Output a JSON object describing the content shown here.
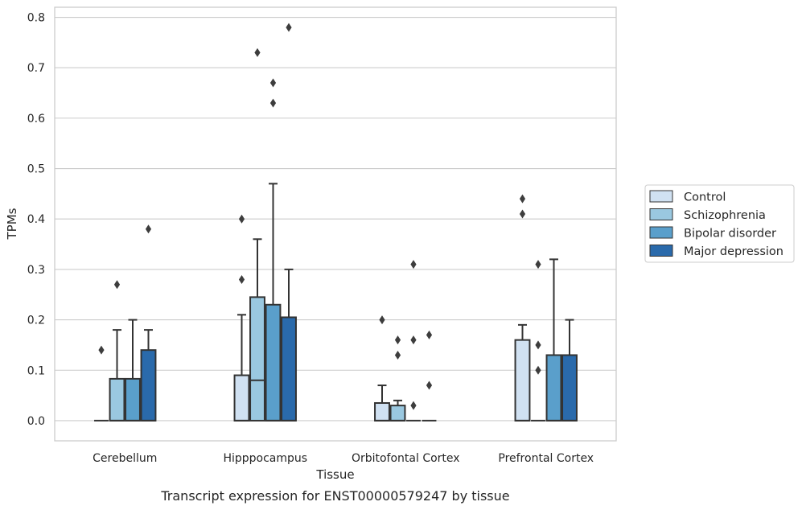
{
  "caption": "Transcript expression for ENST00000579247 by tissue",
  "colors": {
    "Control": "#d0e1f2",
    "Schizophrenia": "#9ac8e0",
    "Bipolar disorder": "#5a9fcb",
    "Major depression": "#2a6aab",
    "edge": "#333333",
    "grid": "#cccccc",
    "outlier": "#3d3d3d"
  },
  "chart_data": {
    "type": "box",
    "title": "",
    "xlabel": "Tissue",
    "ylabel": "TPMs",
    "ylim": [
      -0.04,
      0.82
    ],
    "yticks": [
      "0.0",
      "0.1",
      "0.2",
      "0.3",
      "0.4",
      "0.5",
      "0.6",
      "0.7",
      "0.8"
    ],
    "grid": "horizontal",
    "legend_position": "right",
    "categories": [
      "Cerebellum",
      "Hipppocampus",
      "Orbitofontal Cortex",
      "Prefrontal Cortex"
    ],
    "series": [
      {
        "name": "Control",
        "boxes": [
          {
            "q1": 0,
            "median": 0,
            "q3": 0,
            "whisker_low": 0,
            "whisker_high": 0,
            "outliers": [
              0.14
            ]
          },
          {
            "q1": 0,
            "median": 0,
            "q3": 0.09,
            "whisker_low": 0,
            "whisker_high": 0.21,
            "outliers": [
              0.28,
              0.4
            ]
          },
          {
            "q1": 0,
            "median": 0,
            "q3": 0.035,
            "whisker_low": 0,
            "whisker_high": 0.07,
            "outliers": [
              0.2
            ]
          },
          {
            "q1": 0,
            "median": 0,
            "q3": 0.16,
            "whisker_low": 0,
            "whisker_high": 0.19,
            "outliers": [
              0.41,
              0.44
            ]
          }
        ]
      },
      {
        "name": "Schizophrenia",
        "boxes": [
          {
            "q1": 0,
            "median": 0,
            "q3": 0.083,
            "whisker_low": 0,
            "whisker_high": 0.18,
            "outliers": [
              0.27
            ]
          },
          {
            "q1": 0,
            "median": 0.08,
            "q3": 0.245,
            "whisker_low": 0,
            "whisker_high": 0.36,
            "outliers": [
              0.73
            ]
          },
          {
            "q1": 0,
            "median": 0,
            "q3": 0.03,
            "whisker_low": 0,
            "whisker_high": 0.04,
            "outliers": [
              0.13,
              0.16
            ]
          },
          {
            "q1": 0,
            "median": 0,
            "q3": 0,
            "whisker_low": 0,
            "whisker_high": 0,
            "outliers": [
              0.1,
              0.15,
              0.31
            ]
          }
        ]
      },
      {
        "name": "Bipolar disorder",
        "boxes": [
          {
            "q1": 0,
            "median": 0,
            "q3": 0.083,
            "whisker_low": 0,
            "whisker_high": 0.2,
            "outliers": []
          },
          {
            "q1": 0,
            "median": 0,
            "q3": 0.23,
            "whisker_low": 0,
            "whisker_high": 0.47,
            "outliers": [
              0.63,
              0.67
            ]
          },
          {
            "q1": 0,
            "median": 0,
            "q3": 0,
            "whisker_low": 0,
            "whisker_high": 0,
            "outliers": [
              0.03,
              0.16,
              0.31
            ]
          },
          {
            "q1": 0,
            "median": 0,
            "q3": 0.13,
            "whisker_low": 0,
            "whisker_high": 0.32,
            "outliers": []
          }
        ]
      },
      {
        "name": "Major depression",
        "boxes": [
          {
            "q1": 0,
            "median": 0,
            "q3": 0.14,
            "whisker_low": 0,
            "whisker_high": 0.18,
            "outliers": [
              0.38
            ]
          },
          {
            "q1": 0,
            "median": 0,
            "q3": 0.205,
            "whisker_low": 0,
            "whisker_high": 0.3,
            "outliers": [
              0.78
            ]
          },
          {
            "q1": 0,
            "median": 0,
            "q3": 0,
            "whisker_low": 0,
            "whisker_high": 0,
            "outliers": [
              0.07,
              0.17
            ]
          },
          {
            "q1": 0,
            "median": 0,
            "q3": 0.13,
            "whisker_low": 0,
            "whisker_high": 0.2,
            "outliers": []
          }
        ]
      }
    ]
  }
}
